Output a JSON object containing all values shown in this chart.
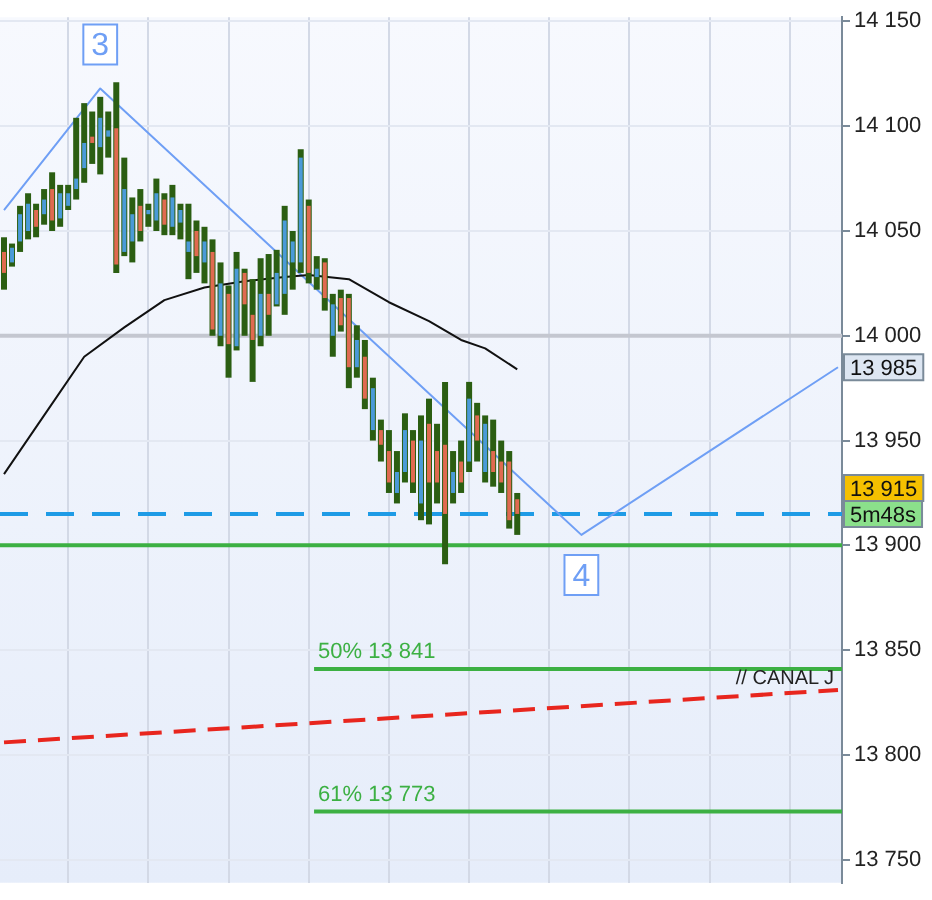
{
  "chart_data": {
    "type": "candlestick",
    "categories": [
      null,
      null,
      null,
      null,
      null,
      null,
      null,
      null,
      null,
      null,
      null,
      null,
      null,
      null,
      null,
      null,
      null,
      null,
      null,
      null,
      null,
      null,
      null,
      null,
      null,
      null,
      null,
      null,
      null,
      null,
      null,
      null,
      null,
      null,
      null,
      null,
      null,
      null,
      null,
      null,
      null,
      null,
      null,
      null,
      null,
      null,
      null,
      null,
      null,
      null,
      null,
      null,
      null,
      null,
      null,
      null,
      null,
      null,
      null,
      null,
      null,
      null,
      null,
      null,
      null,
      null,
      null,
      null,
      null,
      null,
      null,
      null,
      null,
      null,
      null,
      null,
      null,
      null,
      null,
      null,
      null,
      null,
      null,
      null,
      null,
      null,
      null,
      null,
      null,
      null,
      null,
      null,
      null,
      null,
      null,
      null,
      null,
      null,
      null,
      null,
      null,
      null,
      null,
      null,
      null
    ],
    "series": [
      {
        "type": "candlestick",
        "color": "#2b5e12",
        "colors": [
          "#e06a50",
          "#4a9ad8",
          "#4a9ad8",
          "#4a9ad8",
          "#e06a50",
          "#4a9ad8",
          "#e06a50",
          "#4a9ad8",
          "#4a9ad8",
          "#4a9ad8",
          "#4a9ad8",
          "#e06a50",
          "#4a9ad8",
          "#4a9ad8",
          "#e06a50",
          "#4a9ad8",
          "#4a9ad8",
          "#e06a50",
          "#4a9ad8",
          "#4a9ad8",
          "#e06a50",
          "#4a9ad8",
          "#4a9ad8",
          "#4a9ad8",
          "#e06a50",
          "#4a9ad8",
          "#e06a50",
          "#4a9ad8",
          "#e06a50",
          "#4a9ad8",
          "#e06a50",
          "#e06a50",
          "#4a9ad8",
          "#e06a50",
          "#4a9ad8",
          "#4a9ad8",
          "#4a9ad8",
          "#4a9ad8",
          "#e06a50",
          "#4a9ad8",
          "#e06a50",
          "#4a9ad8",
          "#e06a50",
          "#e06a50",
          "#4a9ad8",
          "#e06a50",
          "#4a9ad8",
          "#e06a50",
          "#e06a50",
          "#4a9ad8",
          "#4a9ad8",
          "#e06a50",
          "#4a9ad8",
          "#e06a50",
          "#e06a50",
          "#e06a50",
          "#4a9ad8",
          "#e06a50",
          "#4a9ad8",
          "#e06a50",
          "#4a9ad8",
          "#e06a50",
          "#e06a50",
          "#e06a50",
          "#e06a50",
          null,
          null,
          null,
          null,
          null,
          null,
          null,
          null,
          null,
          null,
          null,
          null,
          null,
          null,
          null,
          null,
          null,
          null,
          null,
          null,
          null,
          null,
          null,
          null,
          null,
          null,
          null,
          null,
          null,
          null,
          null,
          null,
          null,
          null,
          null,
          null,
          null,
          null,
          null,
          null
        ],
        "ohlc": [
          [
            14040,
            14047,
            14022,
            14030
          ],
          [
            14035,
            14044,
            14033,
            14042
          ],
          [
            14045,
            14062,
            14040,
            14058
          ],
          [
            14050,
            14068,
            14046,
            14063
          ],
          [
            14060,
            14063,
            14047,
            14052
          ],
          [
            14058,
            14070,
            14053,
            14065
          ],
          [
            14070,
            14078,
            14050,
            14055
          ],
          [
            14056,
            14072,
            14052,
            14068
          ],
          [
            14062,
            14072,
            14060,
            14068
          ],
          [
            14070,
            14104,
            14065,
            14075
          ],
          [
            14080,
            14111,
            14073,
            14092
          ],
          [
            14095,
            14107,
            14082,
            14092
          ],
          [
            14090,
            14114,
            14077,
            14104
          ],
          [
            14095,
            14107,
            14085,
            14098
          ],
          [
            14099,
            14121,
            14030,
            14034
          ],
          [
            14040,
            14085,
            14038,
            14070
          ],
          [
            14045,
            14066,
            14035,
            14058
          ],
          [
            14062,
            14070,
            14045,
            14050
          ],
          [
            14058,
            14063,
            14052,
            14060
          ],
          [
            14055,
            14075,
            14050,
            14068
          ],
          [
            14065,
            14068,
            14048,
            14053
          ],
          [
            14052,
            14072,
            14048,
            14066
          ],
          [
            14054,
            14063,
            14046,
            14060
          ],
          [
            14040,
            14063,
            14027,
            14045
          ],
          [
            14050,
            14055,
            14030,
            14038
          ],
          [
            14035,
            14052,
            14025,
            14045
          ],
          [
            14040,
            14046,
            14000,
            14003
          ],
          [
            14000,
            14035,
            13995,
            14025
          ],
          [
            14020,
            14024,
            13980,
            13996
          ],
          [
            13995,
            14040,
            13993,
            14032
          ],
          [
            14030,
            14032,
            14000,
            14015
          ],
          [
            14010,
            14027,
            13978,
            13998
          ],
          [
            14000,
            14037,
            13995,
            14020
          ],
          [
            14020,
            14039,
            14000,
            14010
          ],
          [
            14015,
            14041,
            14014,
            14030
          ],
          [
            14020,
            14062,
            14010,
            14055
          ],
          [
            14035,
            14050,
            14022,
            14045
          ],
          [
            14035,
            14089,
            14030,
            14085
          ],
          [
            14062,
            14065,
            14025,
            14030
          ],
          [
            14028,
            14038,
            14022,
            14032
          ],
          [
            14035,
            14037,
            14012,
            14018
          ],
          [
            14000,
            14020,
            13990,
            14015
          ],
          [
            14018,
            14022,
            14002,
            14005
          ],
          [
            14018,
            14020,
            13975,
            13985
          ],
          [
            13985,
            14005,
            13980,
            13998
          ],
          [
            13990,
            13998,
            13965,
            13970
          ],
          [
            13955,
            13980,
            13950,
            13975
          ],
          [
            13955,
            13960,
            13940,
            13948
          ],
          [
            13945,
            13955,
            13925,
            13930
          ],
          [
            13925,
            13945,
            13920,
            13935
          ],
          [
            13935,
            13963,
            13930,
            13955
          ],
          [
            13950,
            13955,
            13925,
            13930
          ],
          [
            13920,
            13962,
            13912,
            13950
          ],
          [
            13958,
            13970,
            13910,
            13930
          ],
          [
            13945,
            13958,
            13920,
            13930
          ],
          [
            13948,
            13978,
            13891,
            13915
          ],
          [
            13925,
            13945,
            13920,
            13935
          ],
          [
            13940,
            13950,
            13925,
            13930
          ],
          [
            13940,
            13978,
            13935,
            13970
          ],
          [
            13962,
            13968,
            13940,
            13950
          ],
          [
            13935,
            13962,
            13930,
            13958
          ],
          [
            13945,
            13960,
            13928,
            13935
          ],
          [
            13940,
            13950,
            13925,
            13930
          ],
          [
            13940,
            13945,
            13908,
            13912
          ],
          [
            13922,
            13925,
            13905,
            13915
          ],
          null,
          null,
          null,
          null,
          null,
          null,
          null,
          null,
          null,
          null,
          null,
          null,
          null,
          null,
          null,
          null,
          null,
          null,
          null,
          null,
          null,
          null,
          null,
          null,
          null,
          null,
          null,
          null,
          null,
          null,
          null,
          null,
          null,
          null,
          null,
          null,
          null,
          null,
          null,
          null
        ]
      },
      {
        "type": "line",
        "color": "#111111",
        "values": [
          13934,
          null,
          null,
          null,
          null,
          13962,
          null,
          null,
          null,
          null,
          13990,
          null,
          null,
          null,
          null,
          14004,
          null,
          null,
          null,
          null,
          14017,
          null,
          null,
          null,
          null,
          14023,
          null,
          null,
          null,
          null,
          14026,
          null,
          null,
          null,
          null,
          14028,
          null,
          null,
          14029,
          null,
          null,
          null,
          null,
          14027,
          null,
          null,
          null,
          null,
          14016,
          null,
          null,
          null,
          null,
          14007,
          null,
          null,
          null,
          13998,
          null,
          null,
          13994,
          null,
          null,
          null,
          13984,
          null,
          null,
          null,
          null,
          null,
          null,
          null,
          null,
          null,
          null,
          null,
          null,
          null,
          null,
          null,
          null,
          null,
          null,
          null,
          null,
          null,
          null,
          null,
          null,
          null,
          null,
          null,
          null,
          null,
          null,
          null,
          null,
          null,
          null,
          null,
          null,
          null,
          null,
          null,
          null
        ]
      },
      {
        "type": "line",
        "color": "#6f9ff5",
        "values": [
          14060,
          null,
          null,
          null,
          null,
          null,
          null,
          null,
          null,
          null,
          null,
          null,
          14118,
          null,
          null,
          null,
          null,
          null,
          null,
          null,
          null,
          null,
          null,
          null,
          null,
          null,
          null,
          null,
          null,
          null,
          null,
          null,
          null,
          null,
          null,
          null,
          null,
          null,
          null,
          null,
          null,
          null,
          null,
          null,
          null,
          null,
          null,
          null,
          null,
          null,
          null,
          null,
          null,
          null,
          null,
          null,
          null,
          null,
          null,
          null,
          null,
          null,
          null,
          null,
          null,
          null,
          null,
          null,
          null,
          null,
          null,
          null,
          13905,
          null,
          null,
          null,
          null,
          null,
          null,
          null,
          null,
          null,
          null,
          null,
          null,
          null,
          null,
          null,
          null,
          null,
          null,
          null,
          null,
          null,
          null,
          null,
          null,
          null,
          null,
          null,
          null,
          null,
          null,
          null,
          13985
        ]
      },
      {
        "type": "line",
        "color": "#e8261e",
        "line_style": "dashed",
        "values": [
          13806,
          null,
          null,
          null,
          null,
          null,
          null,
          null,
          null,
          null,
          null,
          null,
          null,
          null,
          null,
          null,
          null,
          null,
          null,
          null,
          null,
          null,
          null,
          null,
          null,
          null,
          null,
          null,
          null,
          null,
          null,
          null,
          null,
          null,
          null,
          null,
          null,
          null,
          null,
          null,
          null,
          null,
          null,
          null,
          null,
          null,
          null,
          null,
          null,
          null,
          null,
          null,
          null,
          null,
          null,
          null,
          null,
          null,
          null,
          null,
          null,
          null,
          null,
          null,
          null,
          null,
          null,
          null,
          null,
          null,
          null,
          null,
          null,
          null,
          null,
          null,
          null,
          null,
          null,
          null,
          null,
          null,
          null,
          null,
          null,
          null,
          null,
          null,
          null,
          null,
          null,
          null,
          null,
          null,
          null,
          null,
          null,
          null,
          null,
          null,
          null,
          null,
          null,
          null,
          13831
        ]
      }
    ],
    "ylim": [
      13739,
      14152
    ],
    "yticks": [
      {
        "value": 13750,
        "label": "13 750"
      },
      {
        "value": 13800,
        "label": "13 800"
      },
      {
        "value": 13850,
        "label": "13 850"
      },
      {
        "value": 13900,
        "label": "13 900"
      },
      {
        "value": 13950,
        "label": "13 950"
      },
      {
        "value": 14000,
        "label": "14 000"
      },
      {
        "value": 14050,
        "label": "14 050"
      },
      {
        "value": 14100,
        "label": "14 100"
      },
      {
        "value": 14150,
        "label": "14 150"
      }
    ],
    "ref_lines": [
      {
        "axis": "y",
        "value": 14000,
        "color": "#c4c7d0"
      },
      {
        "axis": "y",
        "value": 13915,
        "color": "#1e9be6",
        "line_style": "dashed",
        "label": "13 915"
      },
      {
        "axis": "y",
        "value": 13900,
        "color": "#3cb043"
      },
      {
        "axis": "y",
        "value": 13841,
        "color": "#3cb043",
        "label": "50% 13 841"
      },
      {
        "axis": "y",
        "value": 13773,
        "color": "#3cb043",
        "label": "61% 13 773"
      }
    ],
    "annotations": [
      "// CANAL J",
      {
        "text": "3",
        "y": 14118
      },
      {
        "text": "4",
        "y": 13905
      },
      {
        "text": "13 985",
        "y": 13985
      },
      "5m48s"
    ],
    "grid": true,
    "legend": false,
    "tick_labels": "y"
  }
}
